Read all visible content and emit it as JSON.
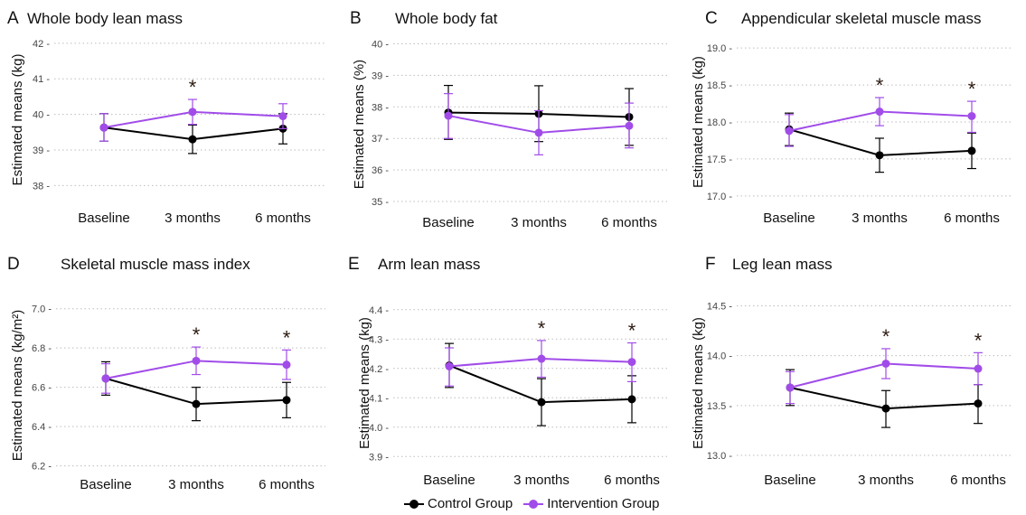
{
  "legend": {
    "items": [
      {
        "label": "Control Group",
        "color": "#000000"
      },
      {
        "label": "Intervention Group",
        "color": "#a14ce9"
      }
    ]
  },
  "chart_data": [
    {
      "type": "line",
      "letter": "A",
      "title": "Whole body lean mass",
      "ylabel": "Estimated means (kg)",
      "categories": [
        "Baseline",
        "3 months",
        "6 months"
      ],
      "ylim": [
        37.5,
        42.2
      ],
      "yticks": [
        "38",
        "39",
        "40",
        "41",
        "42"
      ],
      "grid": true,
      "series": [
        {
          "name": "Control Group",
          "color": "#000000",
          "values": [
            39.63,
            39.3,
            39.6
          ],
          "lower": [
            39.25,
            38.9,
            39.17
          ],
          "upper": [
            40.02,
            39.7,
            40.02
          ]
        },
        {
          "name": "Intervention Group",
          "color": "#a14ce9",
          "values": [
            39.63,
            40.07,
            39.95
          ],
          "lower": [
            39.25,
            39.72,
            39.6
          ],
          "upper": [
            40.02,
            40.42,
            40.3
          ]
        }
      ],
      "significance": [
        "",
        "*",
        ""
      ]
    },
    {
      "type": "line",
      "letter": "B",
      "title": "Whole body fat",
      "ylabel": "Estimated means (%)",
      "categories": [
        "Baseline",
        "3 months",
        "6 months"
      ],
      "ylim": [
        34.8,
        40.1
      ],
      "yticks": [
        "35",
        "36",
        "37",
        "38",
        "39",
        "40"
      ],
      "grid": true,
      "series": [
        {
          "name": "Control Group",
          "color": "#000000",
          "values": [
            37.82,
            37.78,
            37.68
          ],
          "lower": [
            36.97,
            36.9,
            36.78
          ],
          "upper": [
            38.68,
            38.67,
            38.58
          ]
        },
        {
          "name": "Intervention Group",
          "color": "#a14ce9",
          "values": [
            37.72,
            37.18,
            37.4
          ],
          "lower": [
            37.0,
            36.48,
            36.7
          ],
          "upper": [
            38.42,
            37.88,
            38.12
          ]
        }
      ],
      "significance": [
        "",
        "",
        ""
      ]
    },
    {
      "type": "line",
      "letter": "C",
      "title": "Appendicular skeletal muscle mass",
      "ylabel": "Estimated means (kg)",
      "categories": [
        "Baseline",
        "3 months",
        "6 months"
      ],
      "ylim": [
        16.9,
        19.1
      ],
      "yticks": [
        "17.0",
        "17.5",
        "18.0",
        "18.5",
        "19.0"
      ],
      "grid": true,
      "series": [
        {
          "name": "Control Group",
          "color": "#000000",
          "values": [
            17.9,
            17.55,
            17.61
          ],
          "lower": [
            17.68,
            17.32,
            17.37
          ],
          "upper": [
            18.12,
            17.78,
            17.85
          ]
        },
        {
          "name": "Intervention Group",
          "color": "#a14ce9",
          "values": [
            17.88,
            18.14,
            18.08
          ],
          "lower": [
            17.67,
            17.95,
            17.86
          ],
          "upper": [
            18.1,
            18.33,
            18.28
          ]
        }
      ],
      "significance": [
        "",
        "*",
        "*"
      ]
    },
    {
      "type": "line",
      "letter": "D",
      "title": "Skeletal muscle mass index",
      "ylabel": "Estimated means (kg/m²)",
      "categories": [
        "Baseline",
        "3 months",
        "6 months"
      ],
      "ylim": [
        6.18,
        7.04
      ],
      "yticks": [
        "6.2",
        "6.4",
        "6.6",
        "6.8",
        "7.0"
      ],
      "grid": true,
      "series": [
        {
          "name": "Control Group",
          "color": "#000000",
          "values": [
            6.645,
            6.515,
            6.535
          ],
          "lower": [
            6.56,
            6.43,
            6.445
          ],
          "upper": [
            6.73,
            6.6,
            6.625
          ]
        },
        {
          "name": "Intervention Group",
          "color": "#a14ce9",
          "values": [
            6.645,
            6.735,
            6.715
          ],
          "lower": [
            6.57,
            6.665,
            6.64
          ],
          "upper": [
            6.72,
            6.805,
            6.79
          ]
        }
      ],
      "significance": [
        "",
        "*",
        "*"
      ]
    },
    {
      "type": "line",
      "letter": "E",
      "title": "Arm lean mass",
      "ylabel": "Estimated means (kg)",
      "categories": [
        "Baseline",
        "3 months",
        "6 months"
      ],
      "ylim": [
        3.87,
        4.43
      ],
      "yticks": [
        "3.9",
        "4.0",
        "4.1",
        "4.2",
        "4.3",
        "4.4"
      ],
      "grid": true,
      "series": [
        {
          "name": "Control Group",
          "color": "#000000",
          "values": [
            4.21,
            4.085,
            4.095
          ],
          "lower": [
            4.135,
            4.005,
            4.015
          ],
          "upper": [
            4.285,
            4.165,
            4.175
          ]
        },
        {
          "name": "Intervention Group",
          "color": "#a14ce9",
          "values": [
            4.207,
            4.233,
            4.222
          ],
          "lower": [
            4.14,
            4.17,
            4.155
          ],
          "upper": [
            4.27,
            4.295,
            4.287
          ]
        }
      ],
      "significance": [
        "",
        "*",
        "*"
      ]
    },
    {
      "type": "line",
      "letter": "F",
      "title": "Leg lean mass",
      "ylabel": "Estimated means (kg)",
      "categories": [
        "Baseline",
        "3 months",
        "6 months"
      ],
      "ylim": [
        12.9,
        14.55
      ],
      "yticks": [
        "13.0",
        "13.5",
        "14.0",
        "14.5"
      ],
      "grid": true,
      "series": [
        {
          "name": "Control Group",
          "color": "#000000",
          "values": [
            13.68,
            13.47,
            13.52
          ],
          "lower": [
            13.5,
            13.28,
            13.32
          ],
          "upper": [
            13.86,
            13.65,
            13.71
          ]
        },
        {
          "name": "Intervention Group",
          "color": "#a14ce9",
          "values": [
            13.68,
            13.92,
            13.87
          ],
          "lower": [
            13.52,
            13.77,
            13.71
          ],
          "upper": [
            13.84,
            14.07,
            14.03
          ]
        }
      ],
      "significance": [
        "",
        "*",
        "*"
      ]
    }
  ]
}
